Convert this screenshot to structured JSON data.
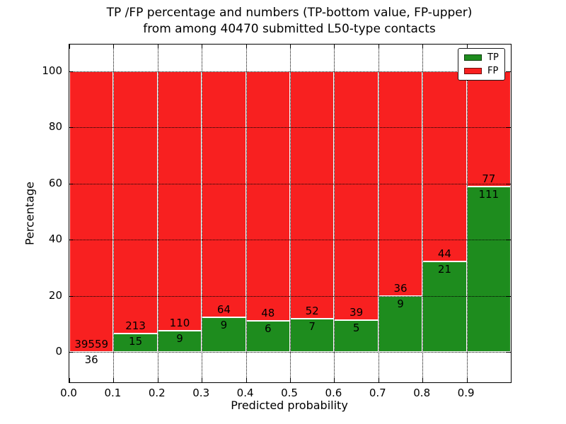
{
  "figure": {
    "title_line1": "TP /FP percentage and numbers (TP-bottom value, FP-upper)",
    "title_line2": "from among 40470 submitted L50-type contacts",
    "xlabel": "Predicted probability",
    "ylabel": "Percentage"
  },
  "axes": {
    "xtick_labels": [
      "0.0",
      "0.1",
      "0.2",
      "0.3",
      "0.4",
      "0.5",
      "0.6",
      "0.7",
      "0.8",
      "0.9"
    ],
    "ytick_labels": [
      "0",
      "20",
      "40",
      "60",
      "80",
      "100"
    ]
  },
  "legend": {
    "items": [
      {
        "label": "TP",
        "color": "#1e8c1e"
      },
      {
        "label": "FP",
        "color": "#f82020"
      }
    ]
  },
  "chart_data": {
    "type": "bar",
    "stacked": true,
    "normalized_to_percent": true,
    "title": "TP /FP percentage and numbers (TP-bottom value, FP-upper) from among 40470 submitted L50-type contacts",
    "xlabel": "Predicted probability",
    "ylabel": "Percentage",
    "total_submitted": 40470,
    "bin_edges": [
      0.0,
      0.1,
      0.2,
      0.3,
      0.4,
      0.5,
      0.6,
      0.7,
      0.8,
      0.9,
      1.0
    ],
    "xlim": [
      0.0,
      1.0
    ],
    "ylim_percent": [
      0,
      100
    ],
    "yticks": [
      0,
      20,
      40,
      60,
      80,
      100
    ],
    "grid": true,
    "legend_position": "upper right",
    "series": [
      {
        "name": "TP",
        "color": "#1e8c1e",
        "counts": [
          36,
          15,
          9,
          9,
          6,
          7,
          5,
          9,
          21,
          111
        ],
        "percent": [
          0.09,
          6.58,
          7.56,
          12.33,
          11.11,
          11.86,
          11.36,
          20.0,
          32.31,
          59.04
        ]
      },
      {
        "name": "FP",
        "color": "#f82020",
        "counts": [
          39559,
          213,
          110,
          64,
          48,
          52,
          39,
          36,
          44,
          77
        ],
        "percent": [
          99.91,
          93.42,
          92.44,
          87.67,
          88.89,
          88.14,
          88.64,
          80.0,
          67.69,
          40.96
        ]
      }
    ]
  }
}
